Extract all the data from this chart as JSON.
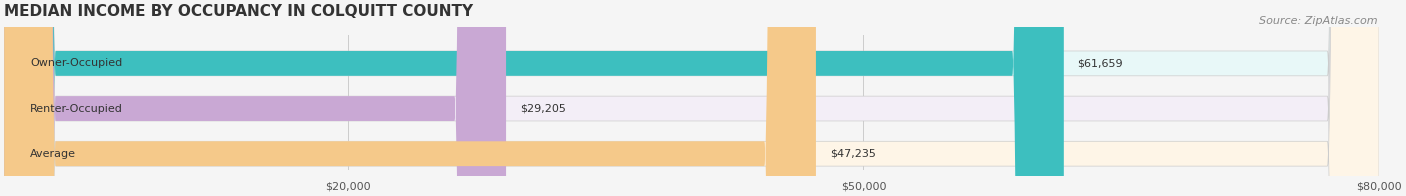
{
  "title": "MEDIAN INCOME BY OCCUPANCY IN COLQUITT COUNTY",
  "source": "Source: ZipAtlas.com",
  "categories": [
    "Owner-Occupied",
    "Renter-Occupied",
    "Average"
  ],
  "values": [
    61659,
    29205,
    47235
  ],
  "labels": [
    "$61,659",
    "$29,205",
    "$47,235"
  ],
  "bar_colors": [
    "#3dbfbf",
    "#c9a8d4",
    "#f5c98a"
  ],
  "bar_bg_colors": [
    "#e8f8f8",
    "#f3eef7",
    "#fef5e7"
  ],
  "xlim": [
    0,
    80000
  ],
  "xticks": [
    20000,
    50000,
    80000
  ],
  "xtick_labels": [
    "$20,000",
    "$50,000",
    "$80,000"
  ],
  "title_fontsize": 11,
  "source_fontsize": 8,
  "label_fontsize": 8,
  "bar_label_fontsize": 8,
  "cat_fontsize": 8,
  "background_color": "#f5f5f5"
}
